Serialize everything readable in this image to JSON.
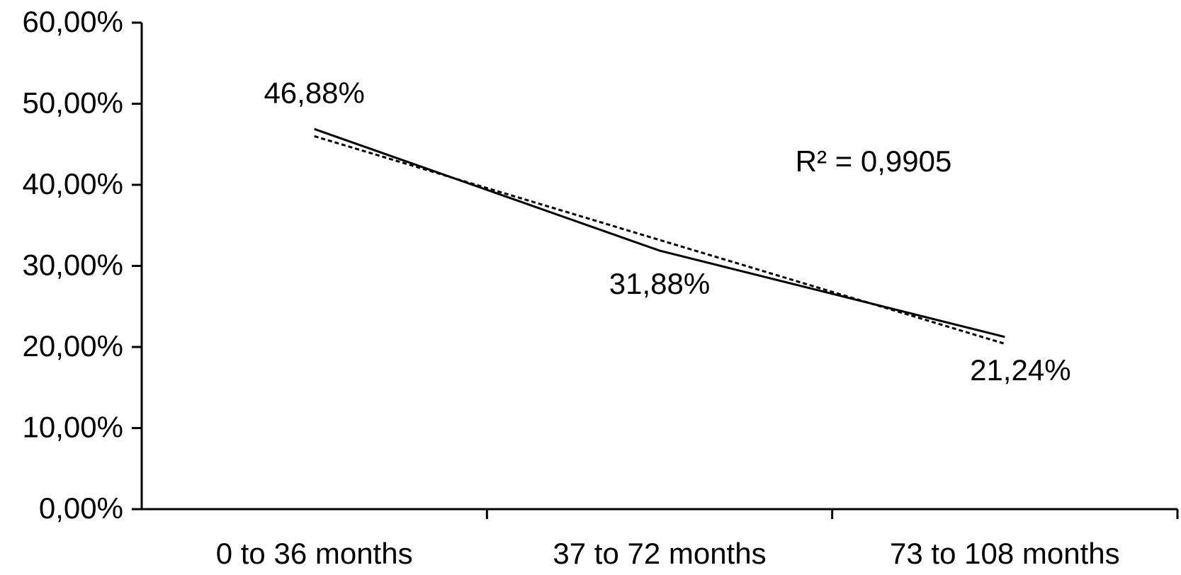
{
  "chart_data": {
    "type": "line",
    "categories": [
      "0 to 36 months",
      "37 to 72 months",
      "73 to 108 months"
    ],
    "series": [
      {
        "color": "#000000",
        "values": [
          46.88,
          31.88,
          21.24
        ],
        "value_labels": [
          "46,88%",
          "31,88%",
          "21,24%"
        ]
      }
    ],
    "trendline": {
      "color": "#000000",
      "values": [
        46.0,
        33.2,
        20.4
      ]
    },
    "annotation": "R² = 0,9905",
    "ylim": [
      0,
      60
    ],
    "yticks": [
      {
        "value": 0,
        "label": "0,00%"
      },
      {
        "value": 10,
        "label": "10,00%"
      },
      {
        "value": 20,
        "label": "20,00%"
      },
      {
        "value": 30,
        "label": "30,00%"
      },
      {
        "value": 40,
        "label": "40,00%"
      },
      {
        "value": 50,
        "label": "50,00%"
      },
      {
        "value": 60,
        "label": "60,00%"
      }
    ]
  }
}
